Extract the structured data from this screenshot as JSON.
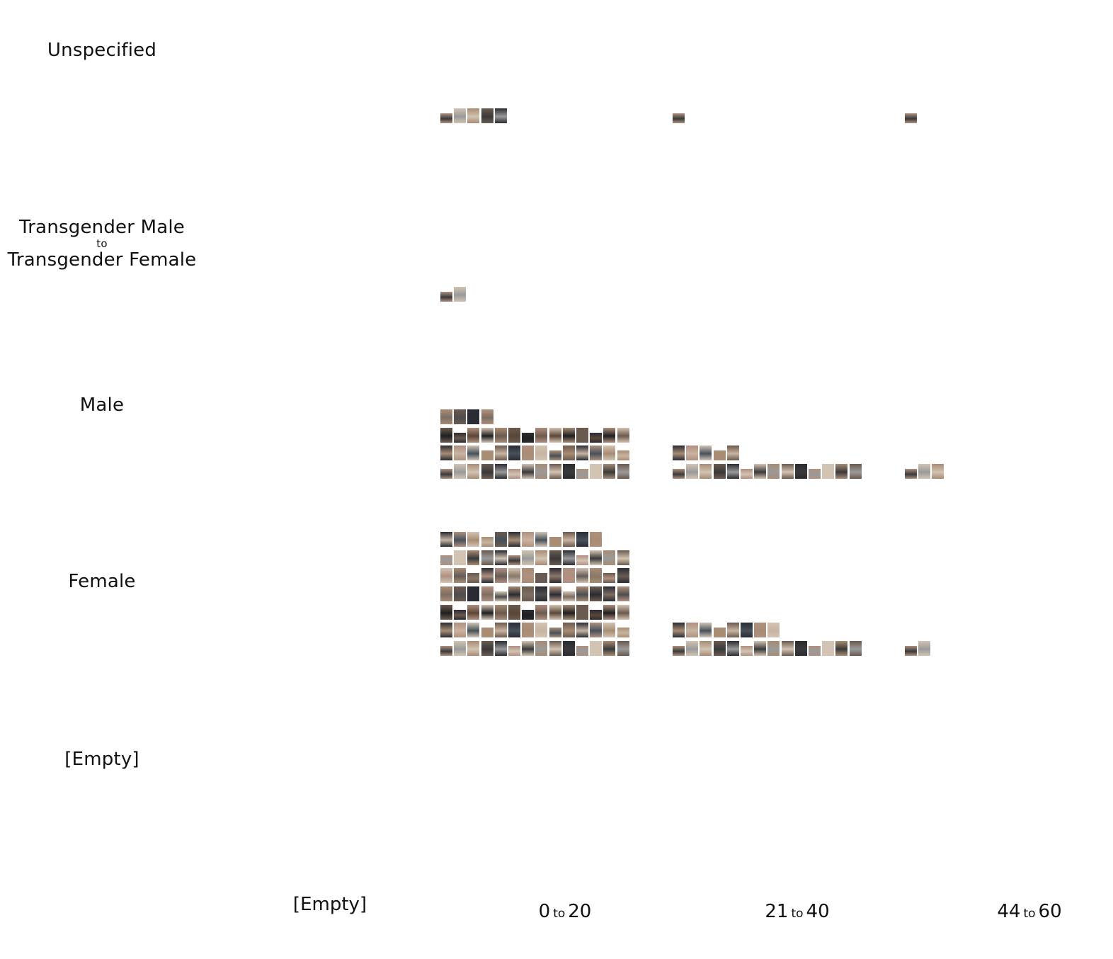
{
  "rows": [
    {
      "id": "unspecified",
      "label": "Unspecified"
    },
    {
      "id": "trans",
      "label_line1": "Transgender Male",
      "label_mid": "to",
      "label_line2": "Transgender Female"
    },
    {
      "id": "male",
      "label": "Male"
    },
    {
      "id": "female",
      "label": "Female"
    },
    {
      "id": "empty",
      "label": "[Empty]"
    }
  ],
  "columns": [
    {
      "id": "empty",
      "label": "[Empty]"
    },
    {
      "id": "0-20",
      "from": "0",
      "to": "to",
      "until": "20"
    },
    {
      "id": "21-40",
      "from": "21",
      "to": "to",
      "until": "40"
    },
    {
      "id": "44-60",
      "from": "44",
      "to": "to",
      "until": "60"
    }
  ],
  "thumbnail_palette": [
    "#3a3a3a",
    "#6b5a4e",
    "#8a7766",
    "#c8b4a0",
    "#2b2b33",
    "#9a9a9a",
    "#5a4636",
    "#b09080",
    "#47515a",
    "#7d6e62",
    "#d2c3b2",
    "#1f1f1f",
    "#665c55",
    "#a88c74",
    "#4e4e4e"
  ],
  "cells": {
    "unspecified": {
      "0-20": 5,
      "21-40": 1,
      "44-60": 1
    },
    "trans": {
      "0-20": 2
    },
    "male": {
      "0-20": 46,
      "21-40": 19,
      "44-60": 3
    },
    "female": {
      "0-20": 96,
      "21-40": 22,
      "44-60": 2
    }
  }
}
